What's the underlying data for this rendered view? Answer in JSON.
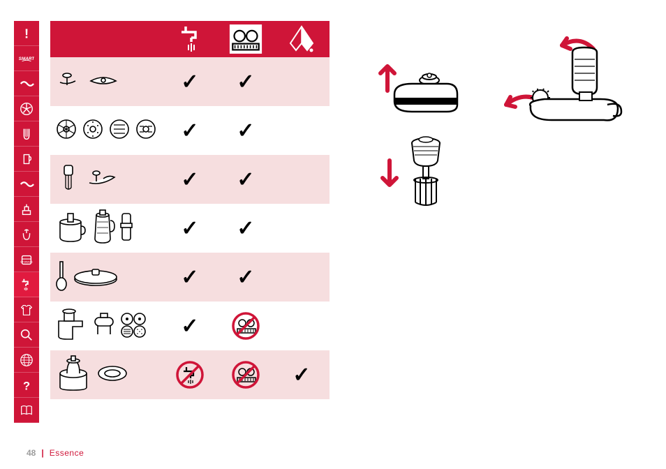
{
  "page": {
    "number": "48",
    "separator": "|",
    "title": "Essence"
  },
  "colors": {
    "brand": "#cf1538",
    "brand_light": "#f6dedf",
    "white": "#ffffff",
    "black": "#000000",
    "tab_bg_normal": "#cf1538",
    "tab_bg_active": "#e11a3f",
    "footer_grey": "#9c9c9c"
  },
  "sidebar": {
    "tabs": [
      {
        "name": "warning-tab",
        "icon": "exclamation",
        "active": false
      },
      {
        "name": "smart-tab",
        "icon": "smart",
        "active": false
      },
      {
        "name": "wave1-tab",
        "icon": "wave",
        "active": false
      },
      {
        "name": "blade-tab",
        "icon": "fan",
        "active": false
      },
      {
        "name": "whisk-tab",
        "icon": "whisk-small",
        "active": false
      },
      {
        "name": "jug-tab",
        "icon": "jug",
        "active": false
      },
      {
        "name": "wave2-tab",
        "icon": "wave",
        "active": false
      },
      {
        "name": "press-tab",
        "icon": "press",
        "active": false
      },
      {
        "name": "juicer-tab",
        "icon": "juicer",
        "active": false
      },
      {
        "name": "storage-tab",
        "icon": "storage",
        "active": false
      },
      {
        "name": "cleaning-tab",
        "icon": "tap",
        "active": true
      },
      {
        "name": "shirt-tab",
        "icon": "shirt",
        "active": false
      },
      {
        "name": "search-tab",
        "icon": "magnifier",
        "active": false
      },
      {
        "name": "globe-tab",
        "icon": "globe",
        "active": false
      },
      {
        "name": "help-tab",
        "icon": "question",
        "active": false
      },
      {
        "name": "book-tab",
        "icon": "book",
        "active": false
      }
    ]
  },
  "table": {
    "header": {
      "bg": "#cf1538",
      "columns": [
        {
          "name": "tap-column",
          "icon": "tap",
          "icon_color": "#ffffff"
        },
        {
          "name": "dishwasher-column",
          "icon": "dishwasher",
          "icon_color": "#ffffff",
          "boxed": true
        },
        {
          "name": "cloth-column",
          "icon": "cloth",
          "icon_color": "#ffffff"
        }
      ]
    },
    "rows": [
      {
        "name": "blades-row",
        "alt": true,
        "parts": [
          "blade-s",
          "blade-wide"
        ],
        "cells": [
          "check",
          "check",
          ""
        ]
      },
      {
        "name": "discs-row",
        "alt": false,
        "parts": [
          "disc-a",
          "disc-b",
          "disc-c",
          "disc-d"
        ],
        "cells": [
          "check",
          "check",
          ""
        ]
      },
      {
        "name": "whisk-row",
        "alt": true,
        "parts": [
          "whisk-gear",
          "knead-s"
        ],
        "cells": [
          "check",
          "check",
          ""
        ]
      },
      {
        "name": "bowls-row",
        "alt": false,
        "parts": [
          "bowl",
          "blender-jar",
          "pusher"
        ],
        "cells": [
          "check",
          "check",
          ""
        ]
      },
      {
        "name": "spatula-row",
        "alt": true,
        "parts": [
          "spatula",
          "lid-flat"
        ],
        "cells": [
          "check",
          "check",
          ""
        ]
      },
      {
        "name": "grinder-row",
        "alt": false,
        "parts": [
          "grinder-body",
          "tube",
          "disc-set"
        ],
        "cells": [
          "check",
          "no-dishwasher",
          ""
        ]
      },
      {
        "name": "motorbase-row",
        "alt": true,
        "parts": [
          "motor-base",
          "ring"
        ],
        "cells": [
          "no-tap",
          "no-dishwasher",
          "check"
        ]
      }
    ],
    "alt_bg": "#f6dedf",
    "prohibit_ring_color": "#cf1538",
    "check_color": "#000000"
  },
  "diagrams": {
    "arrow_color": "#cf1538",
    "line_color": "#000000",
    "items": [
      {
        "name": "gearbox-diagram",
        "arrow": "up"
      },
      {
        "name": "toolhead-diagram",
        "arrow": "curve"
      },
      {
        "name": "whisk-diagram",
        "arrow": "down"
      }
    ]
  }
}
